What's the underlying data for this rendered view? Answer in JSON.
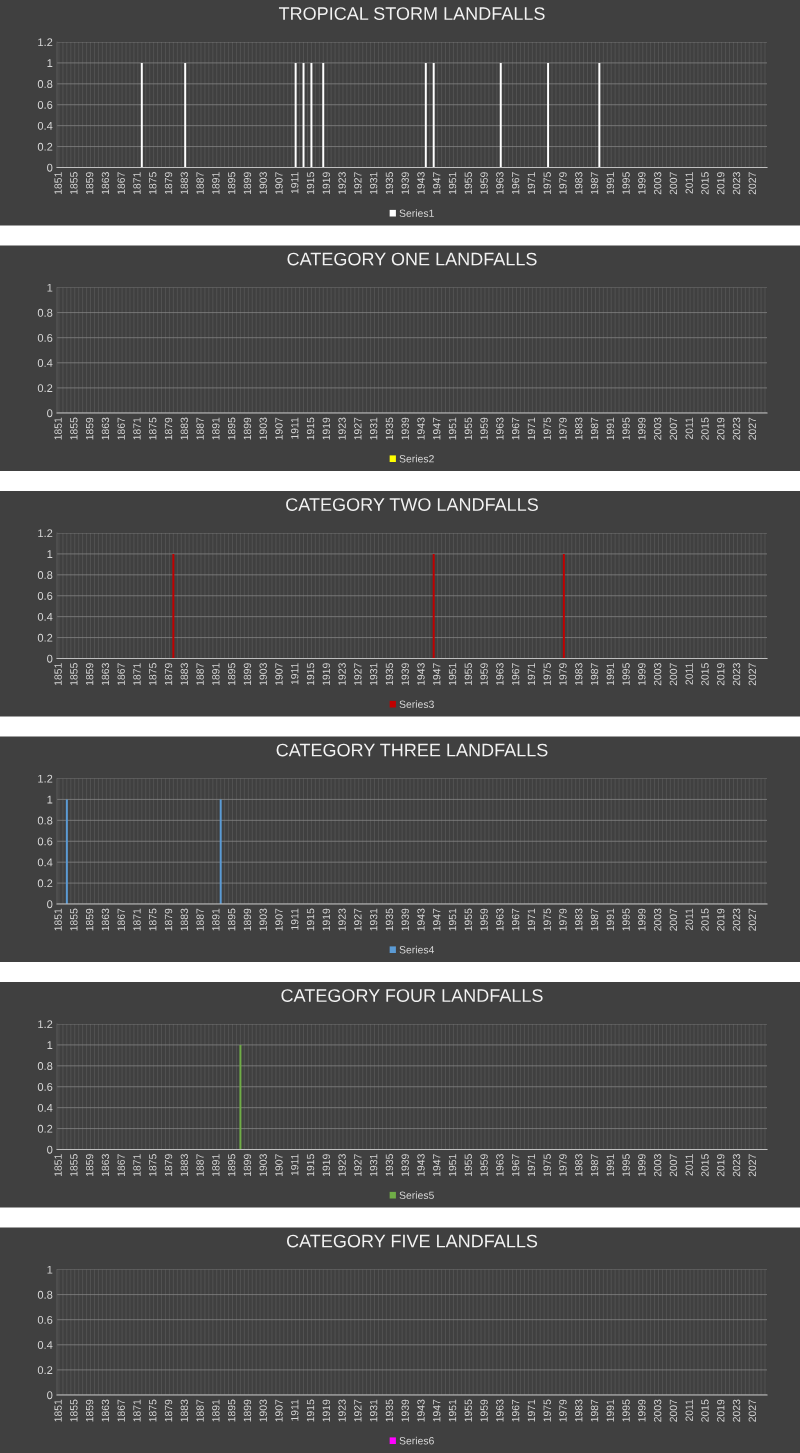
{
  "chart_data": [
    {
      "type": "bar",
      "title": "TROPICAL STORM LANDFALLS",
      "legend": "bottom",
      "grid": true,
      "ylim": [
        0,
        1.2
      ],
      "yticks": [
        0,
        0.2,
        0.4,
        0.6,
        0.8,
        1,
        1.2
      ],
      "categories": [
        "1851",
        null,
        null,
        null,
        "1855",
        null,
        null,
        null,
        "1859",
        null,
        null,
        null,
        "1863",
        null,
        null,
        null,
        "1867",
        null,
        null,
        null,
        "1871",
        null,
        null,
        null,
        "1875",
        null,
        null,
        null,
        "1879",
        null,
        null,
        null,
        "1883",
        null,
        null,
        null,
        "1887",
        null,
        null,
        null,
        "1891",
        null,
        null,
        null,
        "1895",
        null,
        null,
        null,
        "1899",
        null,
        null,
        null,
        "1903",
        null,
        null,
        null,
        "1907",
        null,
        null,
        null,
        "1911",
        null,
        null,
        null,
        "1915",
        null,
        null,
        null,
        "1919",
        null,
        null,
        null,
        "1923",
        null,
        null,
        null,
        "1927",
        null,
        null,
        null,
        "1931",
        null,
        null,
        null,
        "1935",
        null,
        null,
        null,
        "1939",
        null,
        null,
        null,
        "1943",
        null,
        null,
        null,
        "1947",
        null,
        null,
        null,
        "1951",
        null,
        null,
        null,
        "1955",
        null,
        null,
        null,
        "1959",
        null,
        null,
        null,
        "1963",
        null,
        null,
        null,
        "1967",
        null,
        null,
        null,
        "1971",
        null,
        null,
        null,
        "1975",
        null,
        null,
        null,
        "1979",
        null,
        null,
        null,
        "1983",
        null,
        null,
        null,
        "1987",
        null,
        null,
        null,
        "1991",
        null,
        null,
        null,
        "1995",
        null,
        null,
        null,
        "1999",
        null,
        null,
        null,
        "2003",
        null,
        null,
        null,
        "2007",
        null,
        null,
        null,
        "2011",
        null,
        null,
        null,
        "2015",
        null,
        null,
        null,
        "2019",
        null,
        null,
        null,
        "2023",
        null,
        null,
        null,
        "2027",
        null,
        null,
        null
      ],
      "series": [
        {
          "name": "Series1",
          "color": "#ffffff",
          "values": [
            0,
            0,
            0,
            0,
            0,
            0,
            0,
            0,
            0,
            0,
            0,
            0,
            0,
            0,
            0,
            0,
            0,
            0,
            0,
            0,
            0,
            1,
            0,
            0,
            0,
            0,
            0,
            0,
            0,
            0,
            0,
            0,
            1,
            0,
            0,
            0,
            0,
            0,
            0,
            0,
            0,
            0,
            0,
            0,
            0,
            0,
            0,
            0,
            0,
            0,
            0,
            0,
            0,
            0,
            0,
            0,
            0,
            0,
            0,
            0,
            1,
            0,
            1,
            0,
            1,
            0,
            0,
            1,
            0,
            0,
            0,
            0,
            0,
            0,
            0,
            0,
            0,
            0,
            0,
            0,
            0,
            0,
            0,
            0,
            0,
            0,
            0,
            0,
            0,
            0,
            0,
            0,
            0,
            1,
            0,
            1,
            0,
            0,
            0,
            0,
            0,
            0,
            0,
            0,
            0,
            0,
            0,
            0,
            0,
            0,
            0,
            0,
            1,
            0,
            0,
            0,
            0,
            0,
            0,
            0,
            0,
            0,
            0,
            0,
            1,
            0,
            0,
            0,
            0,
            0,
            0,
            0,
            0,
            0,
            0,
            0,
            0,
            1,
            0,
            0,
            0,
            0,
            0,
            0,
            0,
            0,
            0,
            0,
            0,
            0,
            0,
            0,
            0,
            0,
            0,
            0,
            0,
            0,
            0,
            0,
            0,
            0,
            0,
            0,
            0,
            0,
            0,
            0,
            0,
            0,
            0,
            0,
            0,
            0,
            0,
            0,
            0,
            0,
            0,
            0
          ]
        }
      ]
    },
    {
      "type": "bar",
      "title": "CATEGORY ONE LANDFALLS",
      "legend": "bottom",
      "grid": true,
      "ylim": [
        0,
        1
      ],
      "yticks": [
        0,
        0.2,
        0.4,
        0.6,
        0.8,
        1
      ],
      "categories": [
        "1851",
        null,
        null,
        null,
        "1855",
        null,
        null,
        null,
        "1859",
        null,
        null,
        null,
        "1863",
        null,
        null,
        null,
        "1867",
        null,
        null,
        null,
        "1871",
        null,
        null,
        null,
        "1875",
        null,
        null,
        null,
        "1879",
        null,
        null,
        null,
        "1883",
        null,
        null,
        null,
        "1887",
        null,
        null,
        null,
        "1891",
        null,
        null,
        null,
        "1895",
        null,
        null,
        null,
        "1899",
        null,
        null,
        null,
        "1903",
        null,
        null,
        null,
        "1907",
        null,
        null,
        null,
        "1911",
        null,
        null,
        null,
        "1915",
        null,
        null,
        null,
        "1919",
        null,
        null,
        null,
        "1923",
        null,
        null,
        null,
        "1927",
        null,
        null,
        null,
        "1931",
        null,
        null,
        null,
        "1935",
        null,
        null,
        null,
        "1939",
        null,
        null,
        null,
        "1943",
        null,
        null,
        null,
        "1947",
        null,
        null,
        null,
        "1951",
        null,
        null,
        null,
        "1955",
        null,
        null,
        null,
        "1959",
        null,
        null,
        null,
        "1963",
        null,
        null,
        null,
        "1967",
        null,
        null,
        null,
        "1971",
        null,
        null,
        null,
        "1975",
        null,
        null,
        null,
        "1979",
        null,
        null,
        null,
        "1983",
        null,
        null,
        null,
        "1987",
        null,
        null,
        null,
        "1991",
        null,
        null,
        null,
        "1995",
        null,
        null,
        null,
        "1999",
        null,
        null,
        null,
        "2003",
        null,
        null,
        null,
        "2007",
        null,
        null,
        null,
        "2011",
        null,
        null,
        null,
        "2015",
        null,
        null,
        null,
        "2019",
        null,
        null,
        null,
        "2023",
        null,
        null,
        null,
        "2027",
        null,
        null,
        null
      ],
      "series": [
        {
          "name": "Series2",
          "color": "#ffff00",
          "values": [
            0,
            0,
            0,
            0,
            0,
            0,
            0,
            0,
            0,
            0,
            0,
            0,
            0,
            0,
            0,
            0,
            0,
            0,
            0,
            0,
            0,
            0,
            0,
            0,
            0,
            0,
            0,
            0,
            0,
            0,
            0,
            0,
            0,
            0,
            0,
            0,
            0,
            0,
            0,
            0,
            0,
            0,
            0,
            0,
            0,
            0,
            0,
            0,
            0,
            0,
            0,
            0,
            0,
            0,
            0,
            0,
            0,
            0,
            0,
            0,
            0,
            0,
            0,
            0,
            0,
            0,
            0,
            0,
            0,
            0,
            0,
            0,
            0,
            0,
            0,
            0,
            0,
            0,
            0,
            0,
            0,
            0,
            0,
            0,
            0,
            0,
            0,
            0,
            0,
            0,
            0,
            0,
            0,
            0,
            0,
            0,
            0,
            0,
            0,
            0,
            0,
            0,
            0,
            0,
            0,
            0,
            0,
            0,
            0,
            0,
            0,
            0,
            0,
            0,
            0,
            0,
            0,
            0,
            0,
            0,
            0,
            0,
            0,
            0,
            0,
            0,
            0,
            0,
            0,
            0,
            0,
            0,
            0,
            0,
            0,
            0,
            0,
            0,
            0,
            0,
            0,
            0,
            0,
            0,
            0,
            0,
            0,
            0,
            0,
            0,
            0,
            0,
            0,
            0,
            0,
            0,
            0,
            0,
            0,
            0,
            0,
            0,
            0,
            0,
            0,
            0,
            0,
            0,
            0,
            0,
            0,
            0,
            0,
            0,
            0,
            0,
            0,
            0,
            0,
            0
          ]
        }
      ]
    },
    {
      "type": "bar",
      "title": "CATEGORY TWO LANDFALLS",
      "legend": "bottom",
      "grid": true,
      "ylim": [
        0,
        1.2
      ],
      "yticks": [
        0,
        0.2,
        0.4,
        0.6,
        0.8,
        1,
        1.2
      ],
      "categories": [
        "1851",
        null,
        null,
        null,
        "1855",
        null,
        null,
        null,
        "1859",
        null,
        null,
        null,
        "1863",
        null,
        null,
        null,
        "1867",
        null,
        null,
        null,
        "1871",
        null,
        null,
        null,
        "1875",
        null,
        null,
        null,
        "1879",
        null,
        null,
        null,
        "1883",
        null,
        null,
        null,
        "1887",
        null,
        null,
        null,
        "1891",
        null,
        null,
        null,
        "1895",
        null,
        null,
        null,
        "1899",
        null,
        null,
        null,
        "1903",
        null,
        null,
        null,
        "1907",
        null,
        null,
        null,
        "1911",
        null,
        null,
        null,
        "1915",
        null,
        null,
        null,
        "1919",
        null,
        null,
        null,
        "1923",
        null,
        null,
        null,
        "1927",
        null,
        null,
        null,
        "1931",
        null,
        null,
        null,
        "1935",
        null,
        null,
        null,
        "1939",
        null,
        null,
        null,
        "1943",
        null,
        null,
        null,
        "1947",
        null,
        null,
        null,
        "1951",
        null,
        null,
        null,
        "1955",
        null,
        null,
        null,
        "1959",
        null,
        null,
        null,
        "1963",
        null,
        null,
        null,
        "1967",
        null,
        null,
        null,
        "1971",
        null,
        null,
        null,
        "1975",
        null,
        null,
        null,
        "1979",
        null,
        null,
        null,
        "1983",
        null,
        null,
        null,
        "1987",
        null,
        null,
        null,
        "1991",
        null,
        null,
        null,
        "1995",
        null,
        null,
        null,
        "1999",
        null,
        null,
        null,
        "2003",
        null,
        null,
        null,
        "2007",
        null,
        null,
        null,
        "2011",
        null,
        null,
        null,
        "2015",
        null,
        null,
        null,
        "2019",
        null,
        null,
        null,
        "2023",
        null,
        null,
        null,
        "2027",
        null,
        null,
        null
      ],
      "series": [
        {
          "name": "Series3",
          "color": "#c00000",
          "values": [
            0,
            0,
            0,
            0,
            0,
            0,
            0,
            0,
            0,
            0,
            0,
            0,
            0,
            0,
            0,
            0,
            0,
            0,
            0,
            0,
            0,
            0,
            0,
            0,
            0,
            0,
            0,
            0,
            0,
            1,
            0,
            0,
            0,
            0,
            0,
            0,
            0,
            0,
            0,
            0,
            0,
            0,
            0,
            0,
            0,
            0,
            0,
            0,
            0,
            0,
            0,
            0,
            0,
            0,
            0,
            0,
            0,
            0,
            0,
            0,
            0,
            0,
            0,
            0,
            0,
            0,
            0,
            0,
            0,
            0,
            0,
            0,
            0,
            0,
            0,
            0,
            0,
            0,
            0,
            0,
            0,
            0,
            0,
            0,
            0,
            0,
            0,
            0,
            0,
            0,
            0,
            0,
            0,
            0,
            0,
            1,
            0,
            0,
            0,
            0,
            0,
            0,
            0,
            0,
            0,
            0,
            0,
            0,
            0,
            0,
            0,
            0,
            0,
            0,
            0,
            0,
            0,
            0,
            0,
            0,
            0,
            0,
            0,
            0,
            0,
            0,
            0,
            0,
            1,
            0,
            0,
            0,
            0,
            0,
            0,
            0,
            0,
            0,
            0,
            0,
            0,
            0,
            0,
            0,
            0,
            0,
            0,
            0,
            0,
            0,
            0,
            0,
            0,
            0,
            0,
            0,
            0,
            0,
            0,
            0,
            0,
            0,
            0,
            0,
            0,
            0,
            0,
            0,
            0,
            0,
            0,
            0,
            0,
            0,
            0,
            0,
            0,
            0,
            0,
            0
          ]
        }
      ]
    },
    {
      "type": "bar",
      "title": "CATEGORY THREE LANDFALLS",
      "legend": "bottom",
      "grid": true,
      "ylim": [
        0,
        1.2
      ],
      "yticks": [
        0,
        0.2,
        0.4,
        0.6,
        0.8,
        1,
        1.2
      ],
      "categories": [
        "1851",
        null,
        null,
        null,
        "1855",
        null,
        null,
        null,
        "1859",
        null,
        null,
        null,
        "1863",
        null,
        null,
        null,
        "1867",
        null,
        null,
        null,
        "1871",
        null,
        null,
        null,
        "1875",
        null,
        null,
        null,
        "1879",
        null,
        null,
        null,
        "1883",
        null,
        null,
        null,
        "1887",
        null,
        null,
        null,
        "1891",
        null,
        null,
        null,
        "1895",
        null,
        null,
        null,
        "1899",
        null,
        null,
        null,
        "1903",
        null,
        null,
        null,
        "1907",
        null,
        null,
        null,
        "1911",
        null,
        null,
        null,
        "1915",
        null,
        null,
        null,
        "1919",
        null,
        null,
        null,
        "1923",
        null,
        null,
        null,
        "1927",
        null,
        null,
        null,
        "1931",
        null,
        null,
        null,
        "1935",
        null,
        null,
        null,
        "1939",
        null,
        null,
        null,
        "1943",
        null,
        null,
        null,
        "1947",
        null,
        null,
        null,
        "1951",
        null,
        null,
        null,
        "1955",
        null,
        null,
        null,
        "1959",
        null,
        null,
        null,
        "1963",
        null,
        null,
        null,
        "1967",
        null,
        null,
        null,
        "1971",
        null,
        null,
        null,
        "1975",
        null,
        null,
        null,
        "1979",
        null,
        null,
        null,
        "1983",
        null,
        null,
        null,
        "1987",
        null,
        null,
        null,
        "1991",
        null,
        null,
        null,
        "1995",
        null,
        null,
        null,
        "1999",
        null,
        null,
        null,
        "2003",
        null,
        null,
        null,
        "2007",
        null,
        null,
        null,
        "2011",
        null,
        null,
        null,
        "2015",
        null,
        null,
        null,
        "2019",
        null,
        null,
        null,
        "2023",
        null,
        null,
        null,
        "2027",
        null,
        null,
        null
      ],
      "series": [
        {
          "name": "Series4",
          "color": "#5b9bd5",
          "values": [
            0,
            0,
            1,
            0,
            0,
            0,
            0,
            0,
            0,
            0,
            0,
            0,
            0,
            0,
            0,
            0,
            0,
            0,
            0,
            0,
            0,
            0,
            0,
            0,
            0,
            0,
            0,
            0,
            0,
            0,
            0,
            0,
            0,
            0,
            0,
            0,
            0,
            0,
            0,
            0,
            0,
            1,
            0,
            0,
            0,
            0,
            0,
            0,
            0,
            0,
            0,
            0,
            0,
            0,
            0,
            0,
            0,
            0,
            0,
            0,
            0,
            0,
            0,
            0,
            0,
            0,
            0,
            0,
            0,
            0,
            0,
            0,
            0,
            0,
            0,
            0,
            0,
            0,
            0,
            0,
            0,
            0,
            0,
            0,
            0,
            0,
            0,
            0,
            0,
            0,
            0,
            0,
            0,
            0,
            0,
            0,
            0,
            0,
            0,
            0,
            0,
            0,
            0,
            0,
            0,
            0,
            0,
            0,
            0,
            0,
            0,
            0,
            0,
            0,
            0,
            0,
            0,
            0,
            0,
            0,
            0,
            0,
            0,
            0,
            0,
            0,
            0,
            0,
            0,
            0,
            0,
            0,
            0,
            0,
            0,
            0,
            0,
            0,
            0,
            0,
            0,
            0,
            0,
            0,
            0,
            0,
            0,
            0,
            0,
            0,
            0,
            0,
            0,
            0,
            0,
            0,
            0,
            0,
            0,
            0,
            0,
            0,
            0,
            0,
            0,
            0,
            0,
            0,
            0,
            0,
            0,
            0,
            0,
            0,
            0,
            0,
            0,
            0,
            0,
            0
          ]
        }
      ]
    },
    {
      "type": "bar",
      "title": "CATEGORY FOUR LANDFALLS",
      "legend": "bottom",
      "grid": true,
      "ylim": [
        0,
        1.2
      ],
      "yticks": [
        0,
        0.2,
        0.4,
        0.6,
        0.8,
        1,
        1.2
      ],
      "categories": [
        "1851",
        null,
        null,
        null,
        "1855",
        null,
        null,
        null,
        "1859",
        null,
        null,
        null,
        "1863",
        null,
        null,
        null,
        "1867",
        null,
        null,
        null,
        "1871",
        null,
        null,
        null,
        "1875",
        null,
        null,
        null,
        "1879",
        null,
        null,
        null,
        "1883",
        null,
        null,
        null,
        "1887",
        null,
        null,
        null,
        "1891",
        null,
        null,
        null,
        "1895",
        null,
        null,
        null,
        "1899",
        null,
        null,
        null,
        "1903",
        null,
        null,
        null,
        "1907",
        null,
        null,
        null,
        "1911",
        null,
        null,
        null,
        "1915",
        null,
        null,
        null,
        "1919",
        null,
        null,
        null,
        "1923",
        null,
        null,
        null,
        "1927",
        null,
        null,
        null,
        "1931",
        null,
        null,
        null,
        "1935",
        null,
        null,
        null,
        "1939",
        null,
        null,
        null,
        "1943",
        null,
        null,
        null,
        "1947",
        null,
        null,
        null,
        "1951",
        null,
        null,
        null,
        "1955",
        null,
        null,
        null,
        "1959",
        null,
        null,
        null,
        "1963",
        null,
        null,
        null,
        "1967",
        null,
        null,
        null,
        "1971",
        null,
        null,
        null,
        "1975",
        null,
        null,
        null,
        "1979",
        null,
        null,
        null,
        "1983",
        null,
        null,
        null,
        "1987",
        null,
        null,
        null,
        "1991",
        null,
        null,
        null,
        "1995",
        null,
        null,
        null,
        "1999",
        null,
        null,
        null,
        "2003",
        null,
        null,
        null,
        "2007",
        null,
        null,
        null,
        "2011",
        null,
        null,
        null,
        "2015",
        null,
        null,
        null,
        "2019",
        null,
        null,
        null,
        "2023",
        null,
        null,
        null,
        "2027",
        null,
        null,
        null
      ],
      "series": [
        {
          "name": "Series5",
          "color": "#70ad47",
          "values": [
            0,
            0,
            0,
            0,
            0,
            0,
            0,
            0,
            0,
            0,
            0,
            0,
            0,
            0,
            0,
            0,
            0,
            0,
            0,
            0,
            0,
            0,
            0,
            0,
            0,
            0,
            0,
            0,
            0,
            0,
            0,
            0,
            0,
            0,
            0,
            0,
            0,
            0,
            0,
            0,
            0,
            0,
            0,
            0,
            0,
            0,
            1,
            0,
            0,
            0,
            0,
            0,
            0,
            0,
            0,
            0,
            0,
            0,
            0,
            0,
            0,
            0,
            0,
            0,
            0,
            0,
            0,
            0,
            0,
            0,
            0,
            0,
            0,
            0,
            0,
            0,
            0,
            0,
            0,
            0,
            0,
            0,
            0,
            0,
            0,
            0,
            0,
            0,
            0,
            0,
            0,
            0,
            0,
            0,
            0,
            0,
            0,
            0,
            0,
            0,
            0,
            0,
            0,
            0,
            0,
            0,
            0,
            0,
            0,
            0,
            0,
            0,
            0,
            0,
            0,
            0,
            0,
            0,
            0,
            0,
            0,
            0,
            0,
            0,
            0,
            0,
            0,
            0,
            0,
            0,
            0,
            0,
            0,
            0,
            0,
            0,
            0,
            0,
            0,
            0,
            0,
            0,
            0,
            0,
            0,
            0,
            0,
            0,
            0,
            0,
            0,
            0,
            0,
            0,
            0,
            0,
            0,
            0,
            0,
            0,
            0,
            0,
            0,
            0,
            0,
            0,
            0,
            0,
            0,
            0,
            0,
            0,
            0,
            0,
            0,
            0,
            0,
            0,
            0,
            0
          ]
        }
      ]
    },
    {
      "type": "bar",
      "title": "CATEGORY FIVE LANDFALLS",
      "legend": "bottom",
      "grid": true,
      "ylim": [
        0,
        1
      ],
      "yticks": [
        0,
        0.2,
        0.4,
        0.6,
        0.8,
        1
      ],
      "categories": [
        "1851",
        null,
        null,
        null,
        "1855",
        null,
        null,
        null,
        "1859",
        null,
        null,
        null,
        "1863",
        null,
        null,
        null,
        "1867",
        null,
        null,
        null,
        "1871",
        null,
        null,
        null,
        "1875",
        null,
        null,
        null,
        "1879",
        null,
        null,
        null,
        "1883",
        null,
        null,
        null,
        "1887",
        null,
        null,
        null,
        "1891",
        null,
        null,
        null,
        "1895",
        null,
        null,
        null,
        "1899",
        null,
        null,
        null,
        "1903",
        null,
        null,
        null,
        "1907",
        null,
        null,
        null,
        "1911",
        null,
        null,
        null,
        "1915",
        null,
        null,
        null,
        "1919",
        null,
        null,
        null,
        "1923",
        null,
        null,
        null,
        "1927",
        null,
        null,
        null,
        "1931",
        null,
        null,
        null,
        "1935",
        null,
        null,
        null,
        "1939",
        null,
        null,
        null,
        "1943",
        null,
        null,
        null,
        "1947",
        null,
        null,
        null,
        "1951",
        null,
        null,
        null,
        "1955",
        null,
        null,
        null,
        "1959",
        null,
        null,
        null,
        "1963",
        null,
        null,
        null,
        "1967",
        null,
        null,
        null,
        "1971",
        null,
        null,
        null,
        "1975",
        null,
        null,
        null,
        "1979",
        null,
        null,
        null,
        "1983",
        null,
        null,
        null,
        "1987",
        null,
        null,
        null,
        "1991",
        null,
        null,
        null,
        "1995",
        null,
        null,
        null,
        "1999",
        null,
        null,
        null,
        "2003",
        null,
        null,
        null,
        "2007",
        null,
        null,
        null,
        "2011",
        null,
        null,
        null,
        "2015",
        null,
        null,
        null,
        "2019",
        null,
        null,
        null,
        "2023",
        null,
        null,
        null,
        "2027",
        null,
        null,
        null
      ],
      "series": [
        {
          "name": "Series6",
          "color": "#ff00ff",
          "values": [
            0,
            0,
            0,
            0,
            0,
            0,
            0,
            0,
            0,
            0,
            0,
            0,
            0,
            0,
            0,
            0,
            0,
            0,
            0,
            0,
            0,
            0,
            0,
            0,
            0,
            0,
            0,
            0,
            0,
            0,
            0,
            0,
            0,
            0,
            0,
            0,
            0,
            0,
            0,
            0,
            0,
            0,
            0,
            0,
            0,
            0,
            0,
            0,
            0,
            0,
            0,
            0,
            0,
            0,
            0,
            0,
            0,
            0,
            0,
            0,
            0,
            0,
            0,
            0,
            0,
            0,
            0,
            0,
            0,
            0,
            0,
            0,
            0,
            0,
            0,
            0,
            0,
            0,
            0,
            0,
            0,
            0,
            0,
            0,
            0,
            0,
            0,
            0,
            0,
            0,
            0,
            0,
            0,
            0,
            0,
            0,
            0,
            0,
            0,
            0,
            0,
            0,
            0,
            0,
            0,
            0,
            0,
            0,
            0,
            0,
            0,
            0,
            0,
            0,
            0,
            0,
            0,
            0,
            0,
            0,
            0,
            0,
            0,
            0,
            0,
            0,
            0,
            0,
            0,
            0,
            0,
            0,
            0,
            0,
            0,
            0,
            0,
            0,
            0,
            0,
            0,
            0,
            0,
            0,
            0,
            0,
            0,
            0,
            0,
            0,
            0,
            0,
            0,
            0,
            0,
            0,
            0,
            0,
            0,
            0,
            0,
            0,
            0,
            0,
            0,
            0,
            0,
            0,
            0,
            0,
            0,
            0,
            0,
            0,
            0,
            0,
            0,
            0,
            0,
            0
          ]
        }
      ]
    }
  ]
}
